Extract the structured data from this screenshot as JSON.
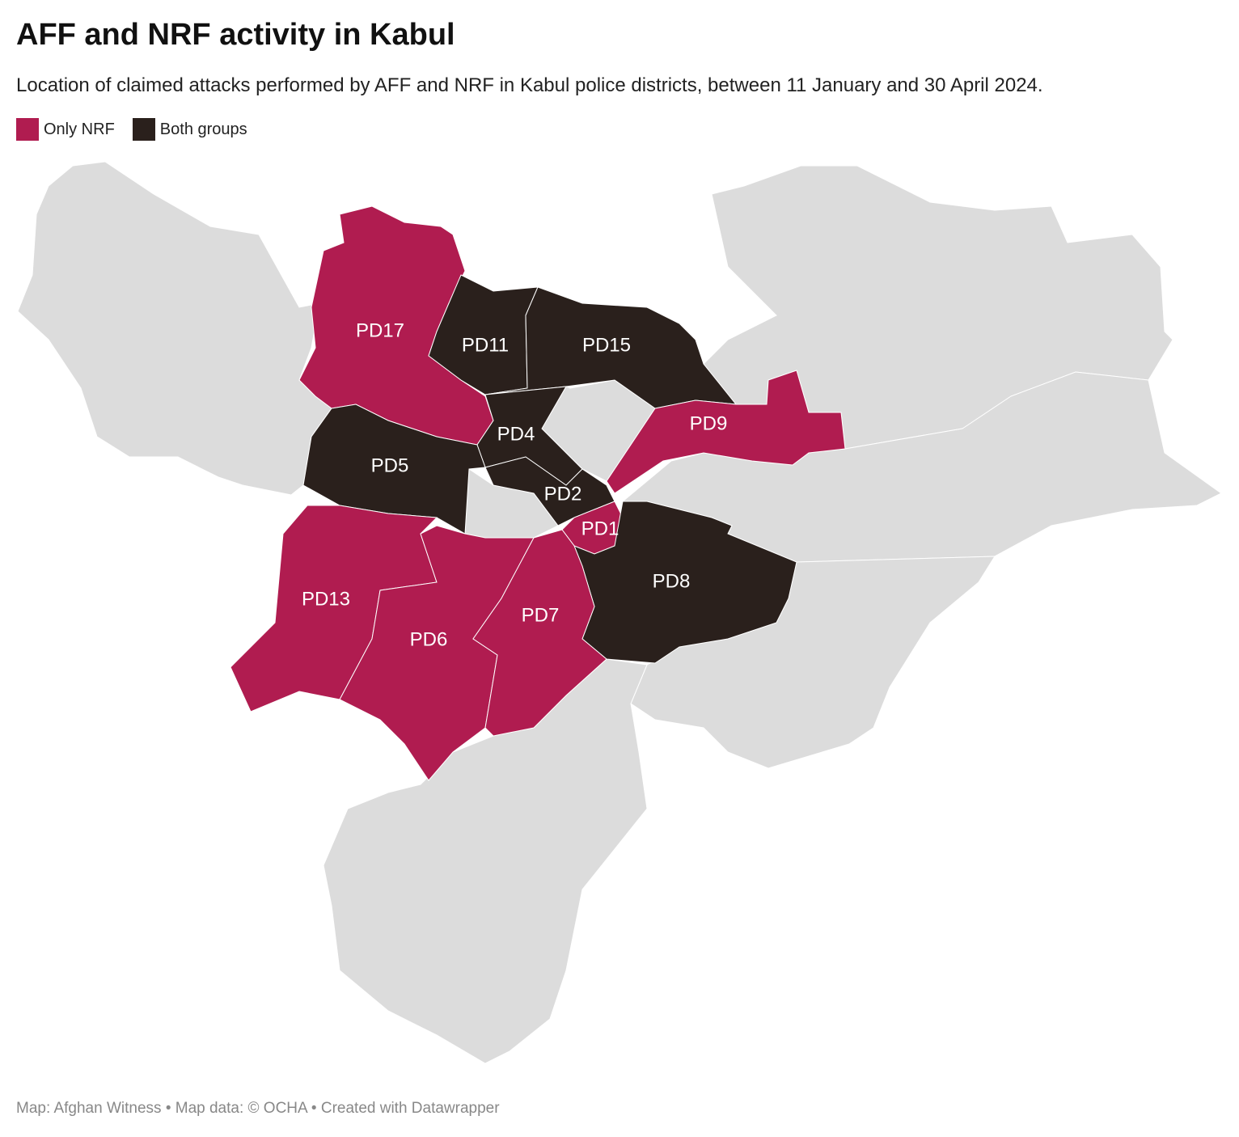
{
  "title": "AFF and NRF activity in Kabul",
  "subtitle": "Location of claimed attacks performed by AFF and NRF in Kabul police districts, between 11 January and 30 April 2024.",
  "legend": [
    {
      "label": "Only NRF",
      "color": "#b01c50"
    },
    {
      "label": "Both groups",
      "color": "#2a201c"
    }
  ],
  "districts": [
    {
      "label": "PD17",
      "group": "Only NRF"
    },
    {
      "label": "PD11",
      "group": "Both groups"
    },
    {
      "label": "PD15",
      "group": "Both groups"
    },
    {
      "label": "PD4",
      "group": "Both groups"
    },
    {
      "label": "PD5",
      "group": "Both groups"
    },
    {
      "label": "PD2",
      "group": "Both groups"
    },
    {
      "label": "PD9",
      "group": "Only NRF"
    },
    {
      "label": "PD1",
      "group": "Only NRF"
    },
    {
      "label": "PD8",
      "group": "Both groups"
    },
    {
      "label": "PD13",
      "group": "Only NRF"
    },
    {
      "label": "PD6",
      "group": "Only NRF"
    },
    {
      "label": "PD7",
      "group": "Only NRF"
    }
  ],
  "footer": "Map: Afghan Witness • Map data: © OCHA  • Created with Datawrapper"
}
